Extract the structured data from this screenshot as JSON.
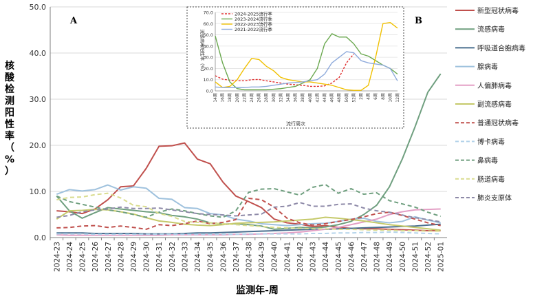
{
  "chart_data": [
    {
      "type": "line",
      "panel_label": "A",
      "xlabel": "监测年-周",
      "ylabel": "核酸检测阳性率（%）",
      "ylim": [
        0,
        50
      ],
      "yticks": [
        "0.0",
        "10.0",
        "20.0",
        "30.0",
        "40.0",
        "50.0"
      ],
      "categories": [
        "2024-23",
        "2024-24",
        "2024-25",
        "2024-26",
        "2024-27",
        "2024-28",
        "2024-29",
        "2024-30",
        "2024-31",
        "2024-32",
        "2024-33",
        "2024-34",
        "2024-35",
        "2024-36",
        "2024-37",
        "2024-38",
        "2024-39",
        "2024-40",
        "2024-41",
        "2024-42",
        "2024-43",
        "2024-44",
        "2024-45",
        "2024-46",
        "2024-47",
        "2024-48",
        "2024-49",
        "2024-50",
        "2024-51",
        "2024-52",
        "2025-01"
      ],
      "series": [
        {
          "name": "新型冠状病毒",
          "color": "#c0504d",
          "dash": "solid",
          "values": [
            5.8,
            5.6,
            5.2,
            6.2,
            8.2,
            11.0,
            11.2,
            15.0,
            19.8,
            19.9,
            20.5,
            17.0,
            16.0,
            12.0,
            9.0,
            7.8,
            6.5,
            4.0,
            3.2,
            2.9,
            2.4,
            2.6,
            2.2,
            2.0,
            1.9,
            1.9,
            1.8,
            1.7,
            1.6,
            1.5,
            1.5
          ]
        },
        {
          "name": "流感病毒",
          "color": "#6f9f7f",
          "dash": "solid",
          "values": [
            9.0,
            5.8,
            4.2,
            5.4,
            6.5,
            6.2,
            5.9,
            5.6,
            5.4,
            4.8,
            4.5,
            4.0,
            3.2,
            2.9,
            3.0,
            2.8,
            2.5,
            1.8,
            2.0,
            2.2,
            2.1,
            2.3,
            2.8,
            3.5,
            5.0,
            7.0,
            11.0,
            17.0,
            24.0,
            31.5,
            35.5
          ]
        },
        {
          "name": "呼吸道合胞病毒",
          "color": "#4a6f8f",
          "dash": "solid",
          "values": [
            1.0,
            1.0,
            1.0,
            0.9,
            0.9,
            0.9,
            0.9,
            0.8,
            0.8,
            0.8,
            0.9,
            1.0,
            1.0,
            1.1,
            1.2,
            1.3,
            1.4,
            1.5,
            1.6,
            1.7,
            1.8,
            1.8,
            1.9,
            2.0,
            2.1,
            2.2,
            2.3,
            2.4,
            2.5,
            2.7,
            2.9
          ]
        },
        {
          "name": "腺病毒",
          "color": "#9ec1dd",
          "dash": "solid",
          "values": [
            9.4,
            10.4,
            10.1,
            10.4,
            11.4,
            10.3,
            11.0,
            10.7,
            8.5,
            8.3,
            6.5,
            6.3,
            5.2,
            4.9,
            4.0,
            3.6,
            3.0,
            2.8,
            2.6,
            2.8,
            3.0,
            3.1,
            3.5,
            4.0,
            4.2,
            3.5,
            3.2,
            3.5,
            4.5,
            3.8,
            3.2
          ]
        },
        {
          "name": "人偏肺病毒",
          "color": "#e39fc5",
          "dash": "solid",
          "values": [
            0.6,
            0.5,
            0.5,
            0.5,
            0.5,
            0.5,
            0.5,
            0.5,
            0.5,
            0.6,
            0.6,
            0.6,
            0.6,
            0.6,
            0.7,
            0.7,
            0.8,
            0.9,
            1.0,
            1.2,
            1.5,
            1.8,
            2.2,
            2.8,
            3.4,
            4.0,
            5.0,
            5.6,
            6.0,
            6.1,
            6.2
          ]
        },
        {
          "name": "副流感病毒",
          "color": "#c5c96a",
          "dash": "solid",
          "values": [
            4.0,
            5.8,
            5.9,
            6.1,
            6.0,
            5.6,
            5.1,
            4.3,
            3.6,
            3.3,
            2.9,
            2.7,
            2.6,
            2.8,
            3.1,
            3.2,
            3.3,
            3.4,
            3.6,
            3.8,
            4.0,
            4.4,
            4.2,
            3.9,
            3.6,
            3.2,
            2.8,
            2.5,
            2.2,
            1.9,
            1.6
          ]
        },
        {
          "name": "普通冠状病毒",
          "color": "#c0504d",
          "dash": "dashed",
          "values": [
            2.1,
            2.2,
            2.5,
            2.6,
            2.2,
            2.5,
            2.2,
            1.8,
            2.8,
            2.6,
            3.0,
            3.6,
            3.0,
            3.3,
            3.9,
            8.5,
            8.2,
            6.6,
            4.2,
            3.2,
            2.7,
            3.0,
            3.5,
            3.9,
            4.5,
            5.2,
            5.5,
            4.8,
            4.0,
            3.2,
            2.6
          ]
        },
        {
          "name": "博卡病毒",
          "color": "#b3d3ea",
          "dash": "dashed",
          "values": [
            0.8,
            0.8,
            0.8,
            0.7,
            0.7,
            0.7,
            0.7,
            0.7,
            0.7,
            0.7,
            0.7,
            0.7,
            0.7,
            0.7,
            0.7,
            0.8,
            0.8,
            0.8,
            0.8,
            0.8,
            0.9,
            0.9,
            1.0,
            1.0,
            1.1,
            1.1,
            1.2,
            1.1,
            1.0,
            0.9,
            0.8
          ]
        },
        {
          "name": "鼻病毒",
          "color": "#6f9f7f",
          "dash": "dashed",
          "values": [
            9.0,
            7.8,
            7.2,
            6.6,
            6.0,
            5.6,
            5.0,
            4.4,
            5.5,
            6.2,
            5.8,
            5.2,
            4.7,
            4.4,
            5.8,
            9.8,
            10.5,
            10.6,
            9.9,
            9.2,
            10.9,
            11.5,
            9.6,
            10.6,
            9.4,
            9.7,
            8.0,
            7.3,
            6.6,
            5.5,
            4.6
          ]
        },
        {
          "name": "肠道病毒",
          "color": "#d9dc8e",
          "dash": "dashed",
          "values": [
            8.2,
            8.7,
            8.8,
            9.3,
            9.6,
            8.6,
            7.0,
            6.7,
            5.2,
            4.6,
            3.5,
            3.3,
            3.2,
            3.0,
            2.8,
            2.6,
            2.4,
            2.2,
            2.1,
            2.0,
            1.9,
            1.9,
            1.8,
            1.8,
            1.7,
            1.6,
            1.6,
            1.5,
            1.5,
            1.4,
            1.4
          ]
        },
        {
          "name": "肺炎支原体",
          "color": "#8e8aa8",
          "dash": "dashed",
          "values": [
            4.4,
            4.8,
            5.6,
            6.0,
            6.2,
            6.6,
            6.3,
            6.3,
            6.4,
            6.0,
            5.6,
            5.2,
            5.0,
            4.9,
            4.7,
            4.9,
            5.1,
            6.6,
            6.8,
            7.6,
            6.8,
            6.8,
            7.2,
            7.3,
            6.4,
            5.8,
            5.5,
            4.9,
            4.3,
            3.9,
            3.4
          ]
        }
      ]
    },
    {
      "type": "line",
      "panel_label": "B",
      "xlabel": "流行周次",
      "ylabel": "流感病毒阳性率（%）",
      "ylim": [
        0,
        70
      ],
      "yticks": [
        "0.0",
        "10.0",
        "20.0",
        "30.0",
        "40.0",
        "50.0",
        "60.0",
        "70.0"
      ],
      "categories": [
        "14周",
        "16周",
        "18周",
        "20周",
        "22周",
        "24周",
        "26周",
        "28周",
        "30周",
        "32周",
        "34周",
        "36周",
        "38周",
        "40周",
        "42周",
        "44周",
        "46周",
        "48周",
        "50周",
        "52周",
        "2周",
        "4周",
        "6周",
        "8周",
        "10周",
        "12周"
      ],
      "series": [
        {
          "name": "2024-2025流行季",
          "color": "#e03030",
          "dash": "dashed",
          "values": [
            13.5,
            10.5,
            9.5,
            9.0,
            9.0,
            10.0,
            10.2,
            9.0,
            8.0,
            7.0,
            6.0,
            5.5,
            5.0,
            4.0,
            4.0,
            4.5,
            7.0,
            12.0,
            25.0,
            33.0,
            null,
            null,
            null,
            null,
            null,
            null
          ]
        },
        {
          "name": "2023-2024流行季",
          "color": "#6aa84f",
          "dash": "solid",
          "values": [
            49.0,
            25.0,
            8.0,
            2.0,
            1.0,
            1.0,
            1.0,
            1.0,
            1.5,
            2.0,
            3.0,
            4.0,
            7.0,
            10.0,
            20.0,
            42.0,
            51.0,
            48.0,
            48.0,
            42.0,
            33.0,
            31.0,
            27.0,
            23.0,
            20.0,
            15.0
          ]
        },
        {
          "name": "2022-2023流行季",
          "color": "#f0c000",
          "dash": "solid",
          "values": [
            8.0,
            3.0,
            4.0,
            10.0,
            20.0,
            29.0,
            28.0,
            22.0,
            18.0,
            12.0,
            10.0,
            9.0,
            8.0,
            8.0,
            7.0,
            6.0,
            5.0,
            3.0,
            1.0,
            0.5,
            0.5,
            5.0,
            30.0,
            60.0,
            61.0,
            56.0
          ]
        },
        {
          "name": "2021-2022流行季",
          "color": "#8eaadb",
          "dash": "solid",
          "values": [
            3.5,
            3.0,
            3.0,
            3.0,
            3.0,
            3.5,
            3.5,
            4.0,
            5.0,
            6.0,
            7.0,
            7.5,
            8.0,
            9.0,
            10.0,
            15.0,
            25.0,
            30.0,
            35.0,
            34.0,
            27.0,
            25.0,
            24.0,
            23.0,
            20.0,
            9.0
          ]
        }
      ]
    }
  ]
}
